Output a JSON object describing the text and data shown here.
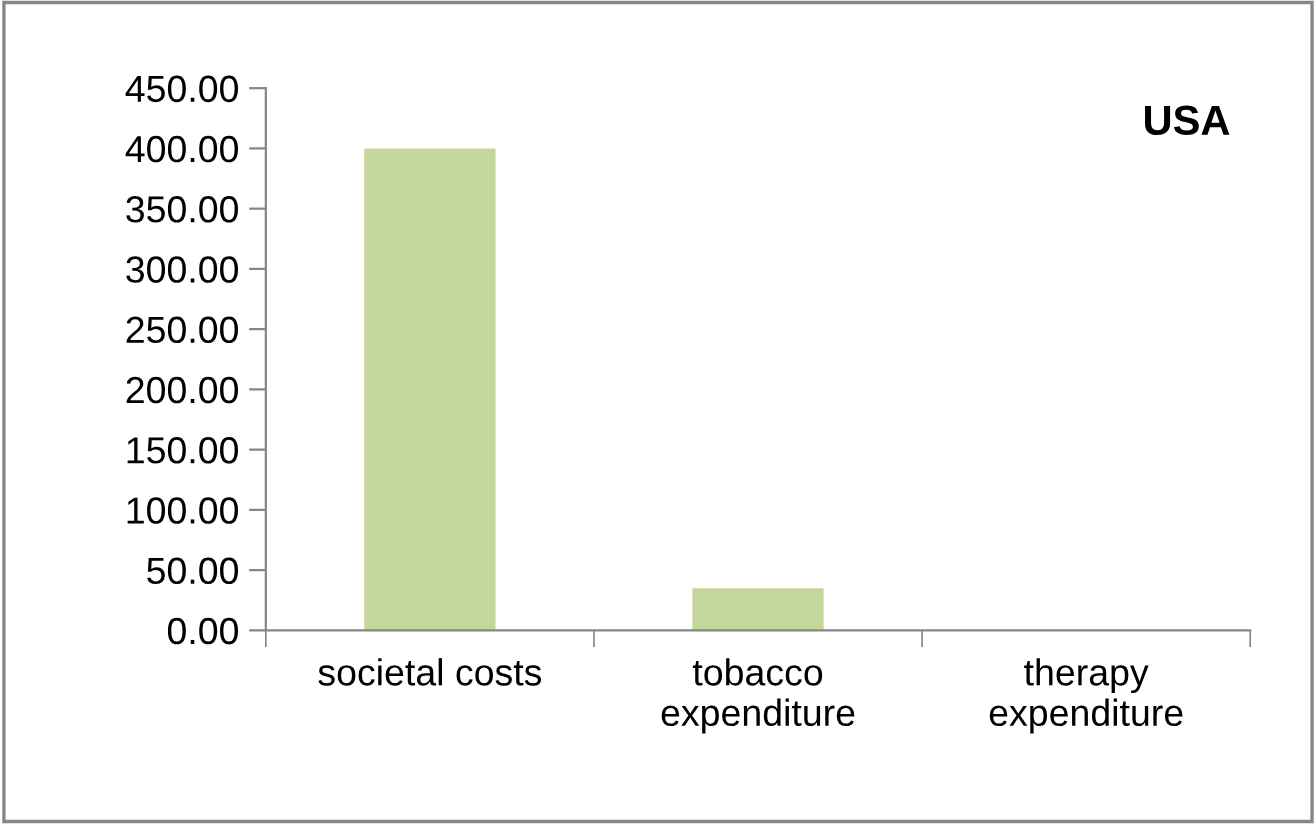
{
  "chart_data": {
    "type": "bar",
    "title": "USA",
    "categories": [
      "societal costs",
      "tobacco\nexpenditure",
      "therapy\nexpenditure"
    ],
    "values": [
      400,
      35,
      0
    ],
    "color": "#c3d69b",
    "ylim": [
      0,
      450
    ],
    "yticks": [
      {
        "value": 0,
        "label": "0.00"
      },
      {
        "value": 50,
        "label": "50.00"
      },
      {
        "value": 100,
        "label": "100.00"
      },
      {
        "value": 150,
        "label": "150.00"
      },
      {
        "value": 200,
        "label": "200.00"
      },
      {
        "value": 250,
        "label": "250.00"
      },
      {
        "value": 300,
        "label": "300.00"
      },
      {
        "value": 350,
        "label": "350.00"
      },
      {
        "value": 400,
        "label": "400.00"
      },
      {
        "value": 450,
        "label": "450.00"
      }
    ],
    "grid": false
  }
}
